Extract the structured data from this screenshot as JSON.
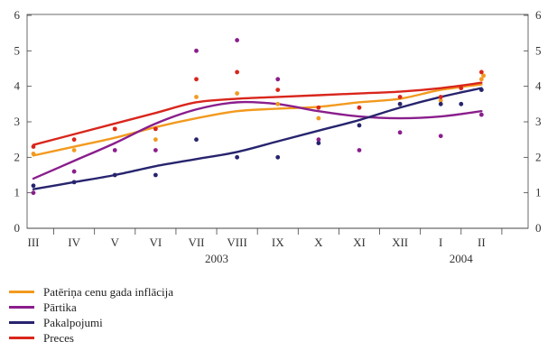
{
  "chart_data": {
    "type": "line",
    "x_labels": [
      "III",
      "IV",
      "V",
      "VI",
      "VII",
      "VIII",
      "IX",
      "X",
      "XI",
      "XII",
      "I",
      "II"
    ],
    "year_labels": [
      {
        "label": "2003",
        "month_index": 4.5
      },
      {
        "label": "2004",
        "month_index": 10.5
      }
    ],
    "ylim": [
      0,
      6
    ],
    "yticks": [
      0,
      1,
      2,
      3,
      4,
      5,
      6
    ],
    "grid": false,
    "axis_labels_both_sides": true,
    "legend_position": "bottom-left",
    "series": [
      {
        "name": "Patēriņa cenu gada inflācija",
        "color": "#f29a1f",
        "trend": [
          2.05,
          2.3,
          2.55,
          2.85,
          3.1,
          3.3,
          3.37,
          3.42,
          3.55,
          3.65,
          3.9,
          4.05
        ],
        "points": [
          2.1,
          2.2,
          2.8,
          2.5,
          3.7,
          3.8,
          3.5,
          3.1,
          3.4,
          3.5,
          3.6,
          4.2,
          4.3
        ],
        "point_x": [
          0,
          1,
          2,
          3,
          4,
          5,
          6,
          7,
          8,
          9,
          10,
          11,
          11.05
        ]
      },
      {
        "name": "Pārtika",
        "color": "#8a1e8c",
        "trend": [
          1.4,
          1.9,
          2.4,
          2.95,
          3.35,
          3.55,
          3.5,
          3.3,
          3.15,
          3.1,
          3.15,
          3.3
        ],
        "points": [
          1.0,
          1.6,
          2.2,
          2.2,
          5.0,
          5.3,
          4.2,
          2.5,
          2.2,
          2.7,
          2.6,
          3.2
        ],
        "point_x": [
          0,
          1,
          2,
          3,
          4,
          5,
          6,
          7,
          8,
          9,
          10,
          11
        ]
      },
      {
        "name": "Pakalpojumi",
        "color": "#27246e",
        "trend": [
          1.1,
          1.3,
          1.5,
          1.75,
          1.95,
          2.15,
          2.45,
          2.75,
          3.05,
          3.4,
          3.7,
          3.95
        ],
        "points": [
          1.2,
          1.3,
          1.5,
          1.5,
          2.5,
          2.0,
          2.0,
          2.4,
          2.9,
          3.5,
          3.5,
          3.5,
          3.9
        ],
        "point_x": [
          0,
          1,
          2,
          3,
          4,
          5,
          6,
          7,
          8,
          9,
          10,
          10.5,
          11
        ]
      },
      {
        "name": "Preces",
        "color": "#d9261c",
        "trend": [
          2.35,
          2.65,
          2.95,
          3.25,
          3.55,
          3.65,
          3.7,
          3.75,
          3.8,
          3.85,
          3.95,
          4.1
        ],
        "points": [
          2.3,
          2.5,
          2.8,
          2.8,
          4.2,
          4.4,
          3.9,
          3.4,
          3.4,
          3.7,
          3.7,
          3.95,
          4.4
        ],
        "point_x": [
          0,
          1,
          2,
          3,
          4,
          5,
          6,
          7,
          8,
          9,
          10,
          10.5,
          11
        ]
      }
    ]
  }
}
